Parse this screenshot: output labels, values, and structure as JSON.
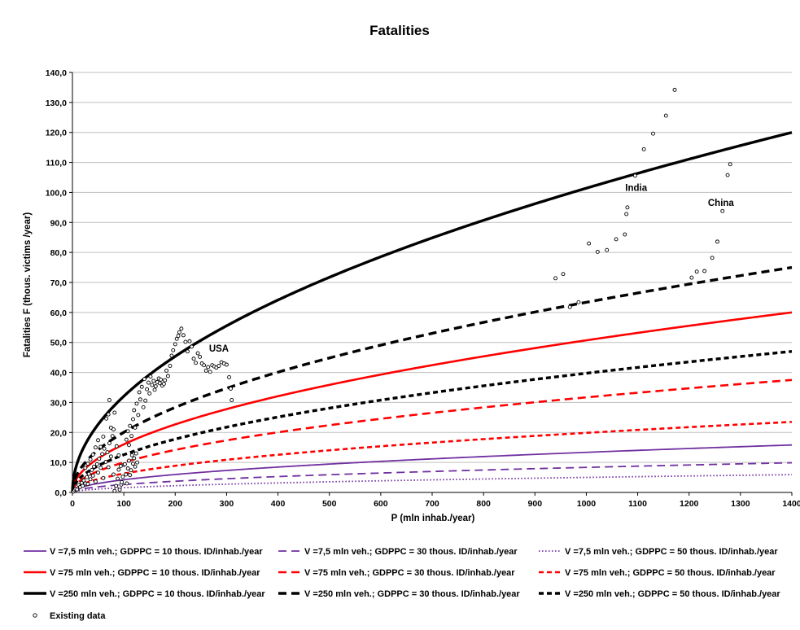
{
  "chart_data": {
    "type": "line",
    "title": "Fatalities",
    "xlabel": "P (mln inhab./year)",
    "ylabel": "Fatalities F (thous. victims /year)",
    "xlim": [
      0,
      1400
    ],
    "ylim": [
      0,
      140
    ],
    "xticks": [
      "0",
      "100",
      "200",
      "300",
      "400",
      "500",
      "600",
      "700",
      "800",
      "900",
      "1000",
      "1100",
      "1200",
      "1300",
      "1400"
    ],
    "yticks": [
      "0,0",
      "10,0",
      "20,0",
      "30,0",
      "40,0",
      "50,0",
      "60,0",
      "70,0",
      "80,0",
      "90,0",
      "100,0",
      "110,0",
      "120,0",
      "130,0",
      "140,0"
    ],
    "grid": "horizontal",
    "legend_position": "bottom",
    "series": [
      {
        "name": "V =7,5 mln veh.; GDPPC = 10 thous. ID/inhab./year",
        "color": "#7030a0",
        "dash": "solid",
        "coef": 0.4228
      },
      {
        "name": "V =7,5 mln veh.; GDPPC = 30 thous. ID/inhab./year",
        "color": "#7030a0",
        "dash": "dashed",
        "coef": 0.2642
      },
      {
        "name": "V =7,5 mln veh.; GDPPC = 50 thous. ID/inhab./year",
        "color": "#7030a0",
        "dash": "dotted",
        "coef": 0.1585
      },
      {
        "name": "V =75 mln veh.; GDPPC = 10 thous. ID/inhab./year",
        "color": "#ff0000",
        "dash": "solid",
        "coef": 1.6036
      },
      {
        "name": "V =75 mln veh.; GDPPC = 30 thous. ID/inhab./year",
        "color": "#ff0000",
        "dash": "dashed",
        "coef": 1.0022
      },
      {
        "name": "V =75 mln veh.; GDPPC = 50 thous. ID/inhab./year",
        "color": "#ff0000",
        "dash": "dashed-short",
        "coef": 0.6282
      },
      {
        "name": "V =250 mln veh.; GDPPC = 10 thous. ID/inhab./year",
        "color": "#000000",
        "dash": "solid",
        "coef": 3.207
      },
      {
        "name": "V =250 mln veh.; GDPPC = 30 thous. ID/inhab./year",
        "color": "#000000",
        "dash": "dashed",
        "coef": 2.0044
      },
      {
        "name": "V =250 mln veh.; GDPPC = 50 thous. ID/inhab./year",
        "color": "#000000",
        "dash": "dashed-short",
        "coef": 1.2564
      }
    ],
    "curve_model": "y = coef * sqrt(x)",
    "existing_data": {
      "name": "Existing data",
      "points": [
        [
          2,
          0.3
        ],
        [
          4,
          0.8
        ],
        [
          6,
          1.2
        ],
        [
          9,
          1.0
        ],
        [
          12,
          2.5
        ],
        [
          15,
          1.8
        ],
        [
          18,
          3.2
        ],
        [
          20,
          2.2
        ],
        [
          22,
          4.0
        ],
        [
          25,
          3.0
        ],
        [
          28,
          5.1
        ],
        [
          30,
          2.8
        ],
        [
          32,
          6.2
        ],
        [
          35,
          4.4
        ],
        [
          38,
          7.5
        ],
        [
          40,
          5.6
        ],
        [
          42,
          8.6
        ],
        [
          45,
          3.6
        ],
        [
          48,
          9.4
        ],
        [
          50,
          6.6
        ],
        [
          52,
          11.2
        ],
        [
          55,
          8.2
        ],
        [
          58,
          12.8
        ],
        [
          60,
          4.8
        ],
        [
          62,
          14.6
        ],
        [
          65,
          10.2
        ],
        [
          68,
          13.4
        ],
        [
          70,
          8.4
        ],
        [
          72,
          16.4
        ],
        [
          75,
          12.0
        ],
        [
          78,
          18.8
        ],
        [
          80,
          6.0
        ],
        [
          82,
          0.5
        ],
        [
          85,
          2.2
        ],
        [
          88,
          4.6
        ],
        [
          90,
          7.6
        ],
        [
          92,
          0.9
        ],
        [
          95,
          2.6
        ],
        [
          98,
          5.2
        ],
        [
          100,
          9.2
        ],
        [
          60,
          18.6
        ],
        [
          66,
          24.6
        ],
        [
          70,
          26.0
        ],
        [
          72,
          30.8
        ],
        [
          75,
          21.6
        ],
        [
          80,
          21.0
        ],
        [
          50,
          17.4
        ],
        [
          55,
          15.2
        ],
        [
          45,
          15.0
        ],
        [
          40,
          12.6
        ],
        [
          35,
          11.0
        ],
        [
          30,
          9.6
        ],
        [
          25,
          8.2
        ],
        [
          105,
          17.6
        ],
        [
          108,
          20.4
        ],
        [
          110,
          15.8
        ],
        [
          112,
          22.2
        ],
        [
          115,
          18.8
        ],
        [
          118,
          24.4
        ],
        [
          120,
          27.4
        ],
        [
          122,
          21.6
        ],
        [
          125,
          29.6
        ],
        [
          128,
          25.8
        ],
        [
          130,
          33.4
        ],
        [
          132,
          31.0
        ],
        [
          135,
          35.2
        ],
        [
          138,
          28.4
        ],
        [
          140,
          37.8
        ],
        [
          142,
          30.6
        ],
        [
          145,
          34.4
        ],
        [
          148,
          36.6
        ],
        [
          150,
          33.0
        ],
        [
          152,
          38.6
        ],
        [
          155,
          35.8
        ],
        [
          158,
          37.2
        ],
        [
          160,
          34.2
        ],
        [
          162,
          35.4
        ],
        [
          165,
          36.8
        ],
        [
          168,
          38.0
        ],
        [
          170,
          36.4
        ],
        [
          172,
          37.6
        ],
        [
          175,
          35.6
        ],
        [
          178,
          36.2
        ],
        [
          180,
          37.4
        ],
        [
          183,
          40.6
        ],
        [
          186,
          38.8
        ],
        [
          190,
          42.2
        ],
        [
          193,
          45.6
        ],
        [
          196,
          47.4
        ],
        [
          200,
          49.4
        ],
        [
          203,
          51.2
        ],
        [
          206,
          52.2
        ],
        [
          208,
          53.4
        ],
        [
          212,
          54.6
        ],
        [
          216,
          52.4
        ],
        [
          220,
          50.2
        ],
        [
          224,
          47.0
        ],
        [
          228,
          50.4
        ],
        [
          232,
          48.6
        ],
        [
          236,
          44.6
        ],
        [
          240,
          43.2
        ],
        [
          244,
          46.4
        ],
        [
          248,
          45.2
        ],
        [
          252,
          43.0
        ],
        [
          256,
          42.4
        ],
        [
          260,
          40.6
        ],
        [
          264,
          41.8
        ],
        [
          268,
          40.2
        ],
        [
          272,
          42.4
        ],
        [
          276,
          42.0
        ],
        [
          280,
          41.6
        ],
        [
          285,
          42.2
        ],
        [
          290,
          43.4
        ],
        [
          295,
          43.0
        ],
        [
          300,
          42.6
        ],
        [
          305,
          38.4
        ],
        [
          308,
          34.6
        ],
        [
          310,
          30.8
        ],
        [
          82,
          26.6
        ],
        [
          86,
          15.4
        ],
        [
          90,
          12.4
        ],
        [
          94,
          8.8
        ],
        [
          96,
          3.4
        ],
        [
          102,
          9.4
        ],
        [
          104,
          6.0
        ],
        [
          106,
          3.0
        ],
        [
          108,
          8.0
        ],
        [
          110,
          10.6
        ],
        [
          112,
          5.8
        ],
        [
          114,
          7.4
        ],
        [
          116,
          12.4
        ],
        [
          118,
          9.6
        ],
        [
          120,
          11.4
        ],
        [
          122,
          8.6
        ],
        [
          124,
          13.0
        ],
        [
          126,
          10.0
        ],
        [
          940,
          71.4
        ],
        [
          955,
          72.8
        ],
        [
          968,
          61.8
        ],
        [
          985,
          63.4
        ],
        [
          1005,
          83.0
        ],
        [
          1022,
          80.2
        ],
        [
          1040,
          80.8
        ],
        [
          1058,
          84.4
        ],
        [
          1075,
          86.0
        ],
        [
          1078,
          92.8
        ],
        [
          1080,
          95.0
        ],
        [
          1095,
          105.6
        ],
        [
          1112,
          114.4
        ],
        [
          1130,
          119.6
        ],
        [
          1155,
          125.6
        ],
        [
          1172,
          134.2
        ],
        [
          1205,
          71.6
        ],
        [
          1215,
          73.6
        ],
        [
          1230,
          73.8
        ],
        [
          1245,
          78.2
        ],
        [
          1255,
          83.6
        ],
        [
          1265,
          93.8
        ],
        [
          1275,
          105.8
        ],
        [
          1280,
          109.4
        ]
      ]
    },
    "annotations": [
      {
        "text": "USA",
        "x": 285,
        "y": 47
      },
      {
        "text": "India",
        "x": 1097,
        "y": 100.5
      },
      {
        "text": "China",
        "x": 1262,
        "y": 95.5
      }
    ]
  }
}
